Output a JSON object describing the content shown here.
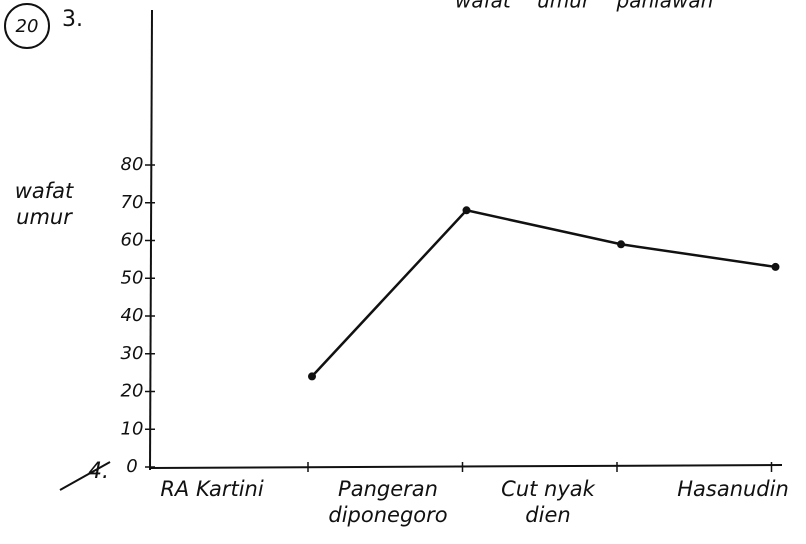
{
  "chart_data": {
    "type": "line",
    "title": "wafat umur pahlawan",
    "y_label": "wafat umur",
    "annotations": [
      "20",
      "3.",
      "4."
    ],
    "categories": [
      "RA Kartini",
      "Pangeran diponegoro",
      "Cut nyak dien",
      "Hasanudin"
    ],
    "series": [
      {
        "name": "wafat umur",
        "color": "#111111",
        "values": [
          24,
          68,
          59,
          53
        ]
      }
    ],
    "ylim": [
      0,
      80
    ],
    "yticks": [
      0,
      10,
      20,
      30,
      40,
      50,
      60,
      70,
      80
    ],
    "grid": false
  }
}
